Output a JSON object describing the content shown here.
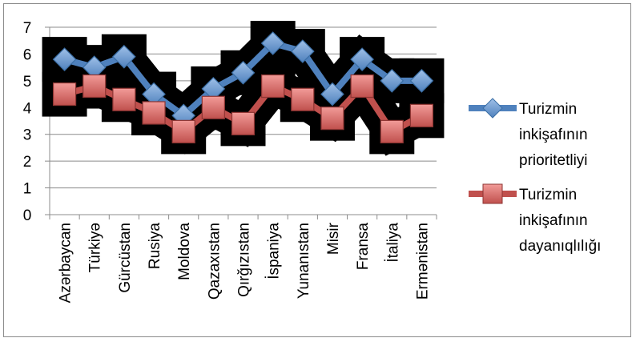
{
  "chart_data": {
    "type": "line",
    "categories": [
      "Azərbaycan",
      "Türkiyə",
      "Gürcüstan",
      "Rusiya",
      "Moldova",
      "Qazaxıstan",
      "Qırğızıstan",
      "İspaniya",
      "Yunanıstan",
      "Misir",
      "Fransa",
      "İtaliya",
      "Ermənistan"
    ],
    "series": [
      {
        "name": "Turizmin inkişafının prioritetliyi",
        "values": [
          5.8,
          5.5,
          5.9,
          4.5,
          3.7,
          4.7,
          5.3,
          6.4,
          6.1,
          4.5,
          5.8,
          5.0,
          5.0
        ],
        "color": "#4f81bd",
        "marker": "diamond",
        "legend_lines": [
          "Turizmin",
          "inkişafının",
          "prioritetliyi"
        ]
      },
      {
        "name": "Turizmin inkişafının dayanıqlılığı",
        "values": [
          4.5,
          4.8,
          4.3,
          3.8,
          3.1,
          4.0,
          3.4,
          4.8,
          4.3,
          3.6,
          4.8,
          3.1,
          3.7
        ],
        "color": "#c0504d",
        "marker": "square",
        "legend_lines": [
          "Turizmin",
          "inkişafının",
          "dayanıqlılığı"
        ]
      }
    ],
    "y_ticks": [
      "0",
      "1",
      "2",
      "3",
      "4",
      "5",
      "6",
      "7"
    ],
    "ylim": [
      0,
      7
    ],
    "grid": true,
    "legend_position": "right",
    "title": "",
    "xlabel": "",
    "ylabel": ""
  }
}
